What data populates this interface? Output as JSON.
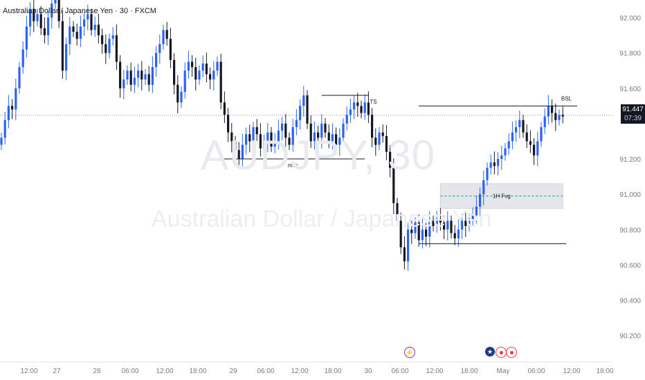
{
  "header": {
    "title": "Australian Dollar / Japanese Yen · 30 · FXCM"
  },
  "watermark": {
    "symbol": "AUDJPY, 30",
    "name": "Australian Dollar / Japanese Yen"
  },
  "price_axis": {
    "labels": [
      "92.000",
      "91.800",
      "91.600",
      "91.200",
      "91.000",
      "90.800",
      "90.600",
      "90.400",
      "90.200"
    ],
    "current_price": "91.447",
    "countdown": "07:39"
  },
  "time_axis": {
    "labels": [
      "12:00",
      "27",
      "28",
      "06:00",
      "12:00",
      "18:00",
      "29",
      "06:00",
      "12:00",
      "18:00",
      "30",
      "06:00",
      "12:00",
      "18:00",
      "May",
      "06:00",
      "12:00",
      "18:00"
    ]
  },
  "annotations": {
    "ts": "TS",
    "mss": "mss",
    "bsl": "BSL",
    "fvg": "1H Fvg"
  },
  "events": [
    {
      "icon": "lightning-icon",
      "color": "#9c27b0"
    },
    {
      "icon": "flag-au-icon",
      "color": "#1e3a8a"
    },
    {
      "icon": "event-dot-icon",
      "color": "#f23645"
    },
    {
      "icon": "event-dot-icon",
      "color": "#f23645"
    }
  ],
  "colors": {
    "up": "#2962ff",
    "down": "#131722",
    "grid": "#f0f3fa",
    "axis_text": "#787b86"
  },
  "chart_data": {
    "type": "candlestick",
    "symbol": "AUDJPY",
    "timeframe": "30",
    "ylim": [
      90.05,
      92.1
    ],
    "x_range": [
      0,
      170
    ],
    "time_ticks": [
      {
        "label": "12:00",
        "x": 8
      },
      {
        "label": "27",
        "x": 20
      },
      {
        "label": "28",
        "x": 36
      },
      {
        "label": "06:00",
        "x": 48
      },
      {
        "label": "12:00",
        "x": 60
      },
      {
        "label": "18:00",
        "x": 72
      },
      {
        "label": "29",
        "x": 84
      },
      {
        "label": "06:00",
        "x": 96
      },
      {
        "label": "12:00",
        "x": 108
      },
      {
        "label": "18:00",
        "x": 120
      },
      {
        "label": "30",
        "x": 132
      },
      {
        "label": "06:00",
        "x": 144
      },
      {
        "label": "12:00",
        "x": 156
      },
      {
        "label": "18:00",
        "x": 168
      }
    ],
    "closes": [
      91.32,
      91.42,
      91.5,
      91.48,
      91.6,
      91.72,
      91.82,
      91.95,
      92.05,
      91.98,
      92.02,
      91.94,
      91.9,
      92.0,
      92.08,
      92.1,
      91.98,
      91.7,
      91.85,
      91.95,
      91.92,
      91.88,
      91.95,
      91.99,
      92.02,
      91.93,
      91.96,
      91.9,
      91.85,
      91.8,
      91.88,
      91.9,
      91.75,
      91.6,
      91.65,
      91.7,
      91.62,
      91.66,
      91.7,
      91.65,
      91.68,
      91.62,
      91.72,
      91.8,
      91.85,
      91.93,
      91.88,
      91.76,
      91.62,
      91.52,
      91.58,
      91.7,
      91.75,
      91.72,
      91.65,
      91.7,
      91.74,
      91.68,
      91.65,
      91.7,
      91.75,
      91.52,
      91.45,
      91.35,
      91.3,
      91.25,
      91.2,
      91.28,
      91.34,
      91.3,
      91.38,
      91.34,
      91.26,
      91.3,
      91.35,
      91.27,
      91.3,
      91.36,
      91.4,
      91.32,
      91.28,
      91.38,
      91.42,
      91.5,
      91.56,
      91.4,
      91.3,
      91.35,
      91.32,
      91.4,
      91.35,
      91.3,
      91.34,
      91.28,
      91.32,
      91.4,
      91.45,
      91.48,
      91.52,
      91.5,
      91.46,
      91.52,
      91.45,
      91.32,
      91.28,
      91.35,
      91.33,
      91.24,
      91.15,
      90.95,
      90.85,
      90.7,
      90.62,
      90.8,
      90.78,
      90.84,
      90.74,
      90.8,
      90.76,
      90.85,
      90.82,
      90.86,
      90.84,
      90.8,
      90.85,
      90.78,
      90.75,
      90.8,
      90.85,
      90.82,
      90.86,
      90.88,
      90.93,
      91.0,
      91.08,
      91.15,
      91.18,
      91.16,
      91.2,
      91.22,
      91.26,
      91.3,
      91.35,
      91.38,
      91.42,
      91.35,
      91.3,
      91.28,
      91.22,
      91.3,
      91.38,
      91.44,
      91.5,
      91.46,
      91.42,
      91.45,
      91.44
    ],
    "levels": [
      {
        "label": "mss",
        "y": 91.2,
        "x_start": 61,
        "x_end": 101
      },
      {
        "label": "TS",
        "y": 91.56,
        "x_start": 89,
        "x_end": 102
      },
      {
        "label": "BSL",
        "y": 91.5,
        "x_start": 116,
        "x_end": 160
      },
      {
        "label": "",
        "y": 90.72,
        "x_start": 116,
        "x_end": 157
      }
    ],
    "zones": [
      {
        "label": "1H Fvg",
        "y_top": 91.06,
        "y_bottom": 90.92,
        "x_start": 122,
        "x_end": 156
      }
    ],
    "last_price": 91.447
  }
}
